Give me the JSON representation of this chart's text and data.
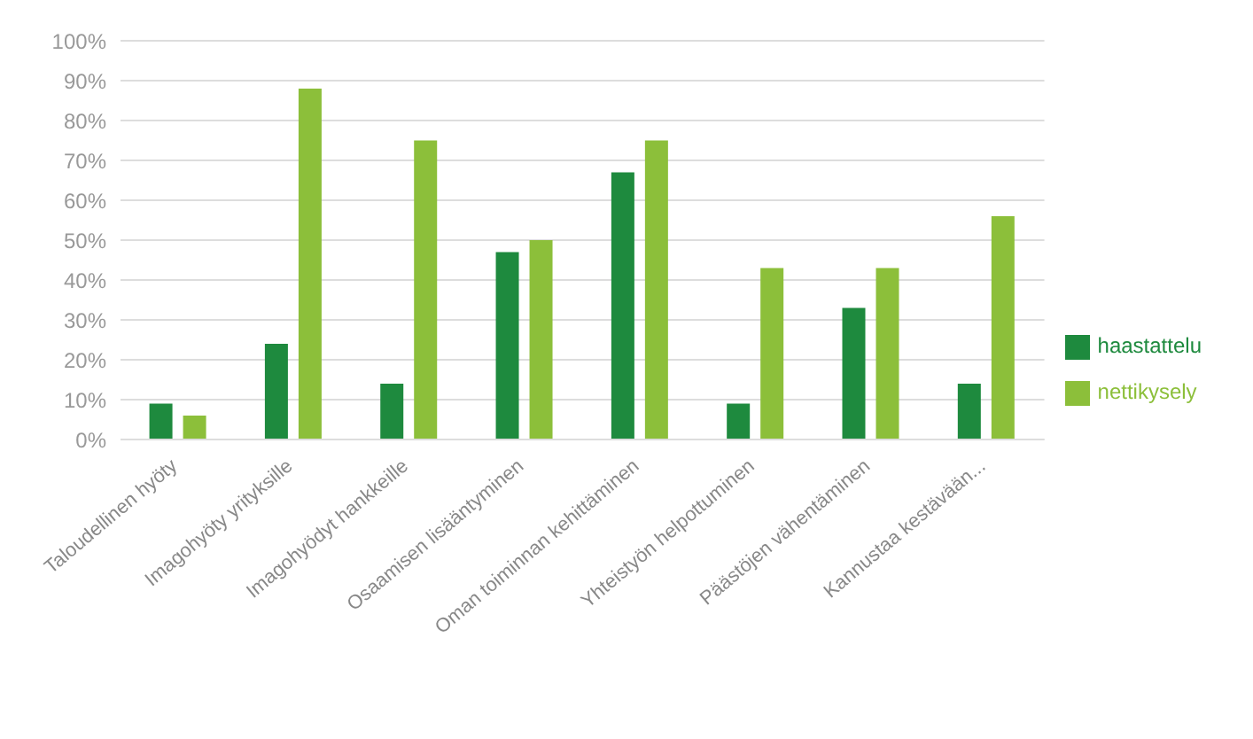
{
  "chart_data": {
    "type": "bar",
    "categories": [
      "Taloudellinen hyöty",
      "Imagohyöty yrityksille",
      "Imagohyödyt hankkeille",
      "Osaamisen lisääntyminen",
      "Oman toiminnan kehittäminen",
      "Yhteistyön helpottuminen",
      "Päästöjen vähentäminen",
      "Kannustaa kestävään..."
    ],
    "series": [
      {
        "name": "haastattelu",
        "color": "#1e8a3e",
        "values": [
          9,
          24,
          14,
          47,
          67,
          9,
          33,
          14
        ]
      },
      {
        "name": "nettikysely",
        "color": "#8cbf3a",
        "values": [
          6,
          88,
          75,
          50,
          75,
          43,
          43,
          56
        ]
      }
    ],
    "ylim": [
      0,
      100
    ],
    "yticks": [
      {
        "value": 0,
        "label": "0%"
      },
      {
        "value": 10,
        "label": "10%"
      },
      {
        "value": 20,
        "label": "20%"
      },
      {
        "value": 30,
        "label": "30%"
      },
      {
        "value": 40,
        "label": "40%"
      },
      {
        "value": 50,
        "label": "50%"
      },
      {
        "value": 60,
        "label": "60%"
      },
      {
        "value": 70,
        "label": "70%"
      },
      {
        "value": 80,
        "label": "80%"
      },
      {
        "value": 90,
        "label": "90%"
      },
      {
        "value": 100,
        "label": "100%"
      }
    ],
    "grid": "y",
    "legend": "right"
  }
}
